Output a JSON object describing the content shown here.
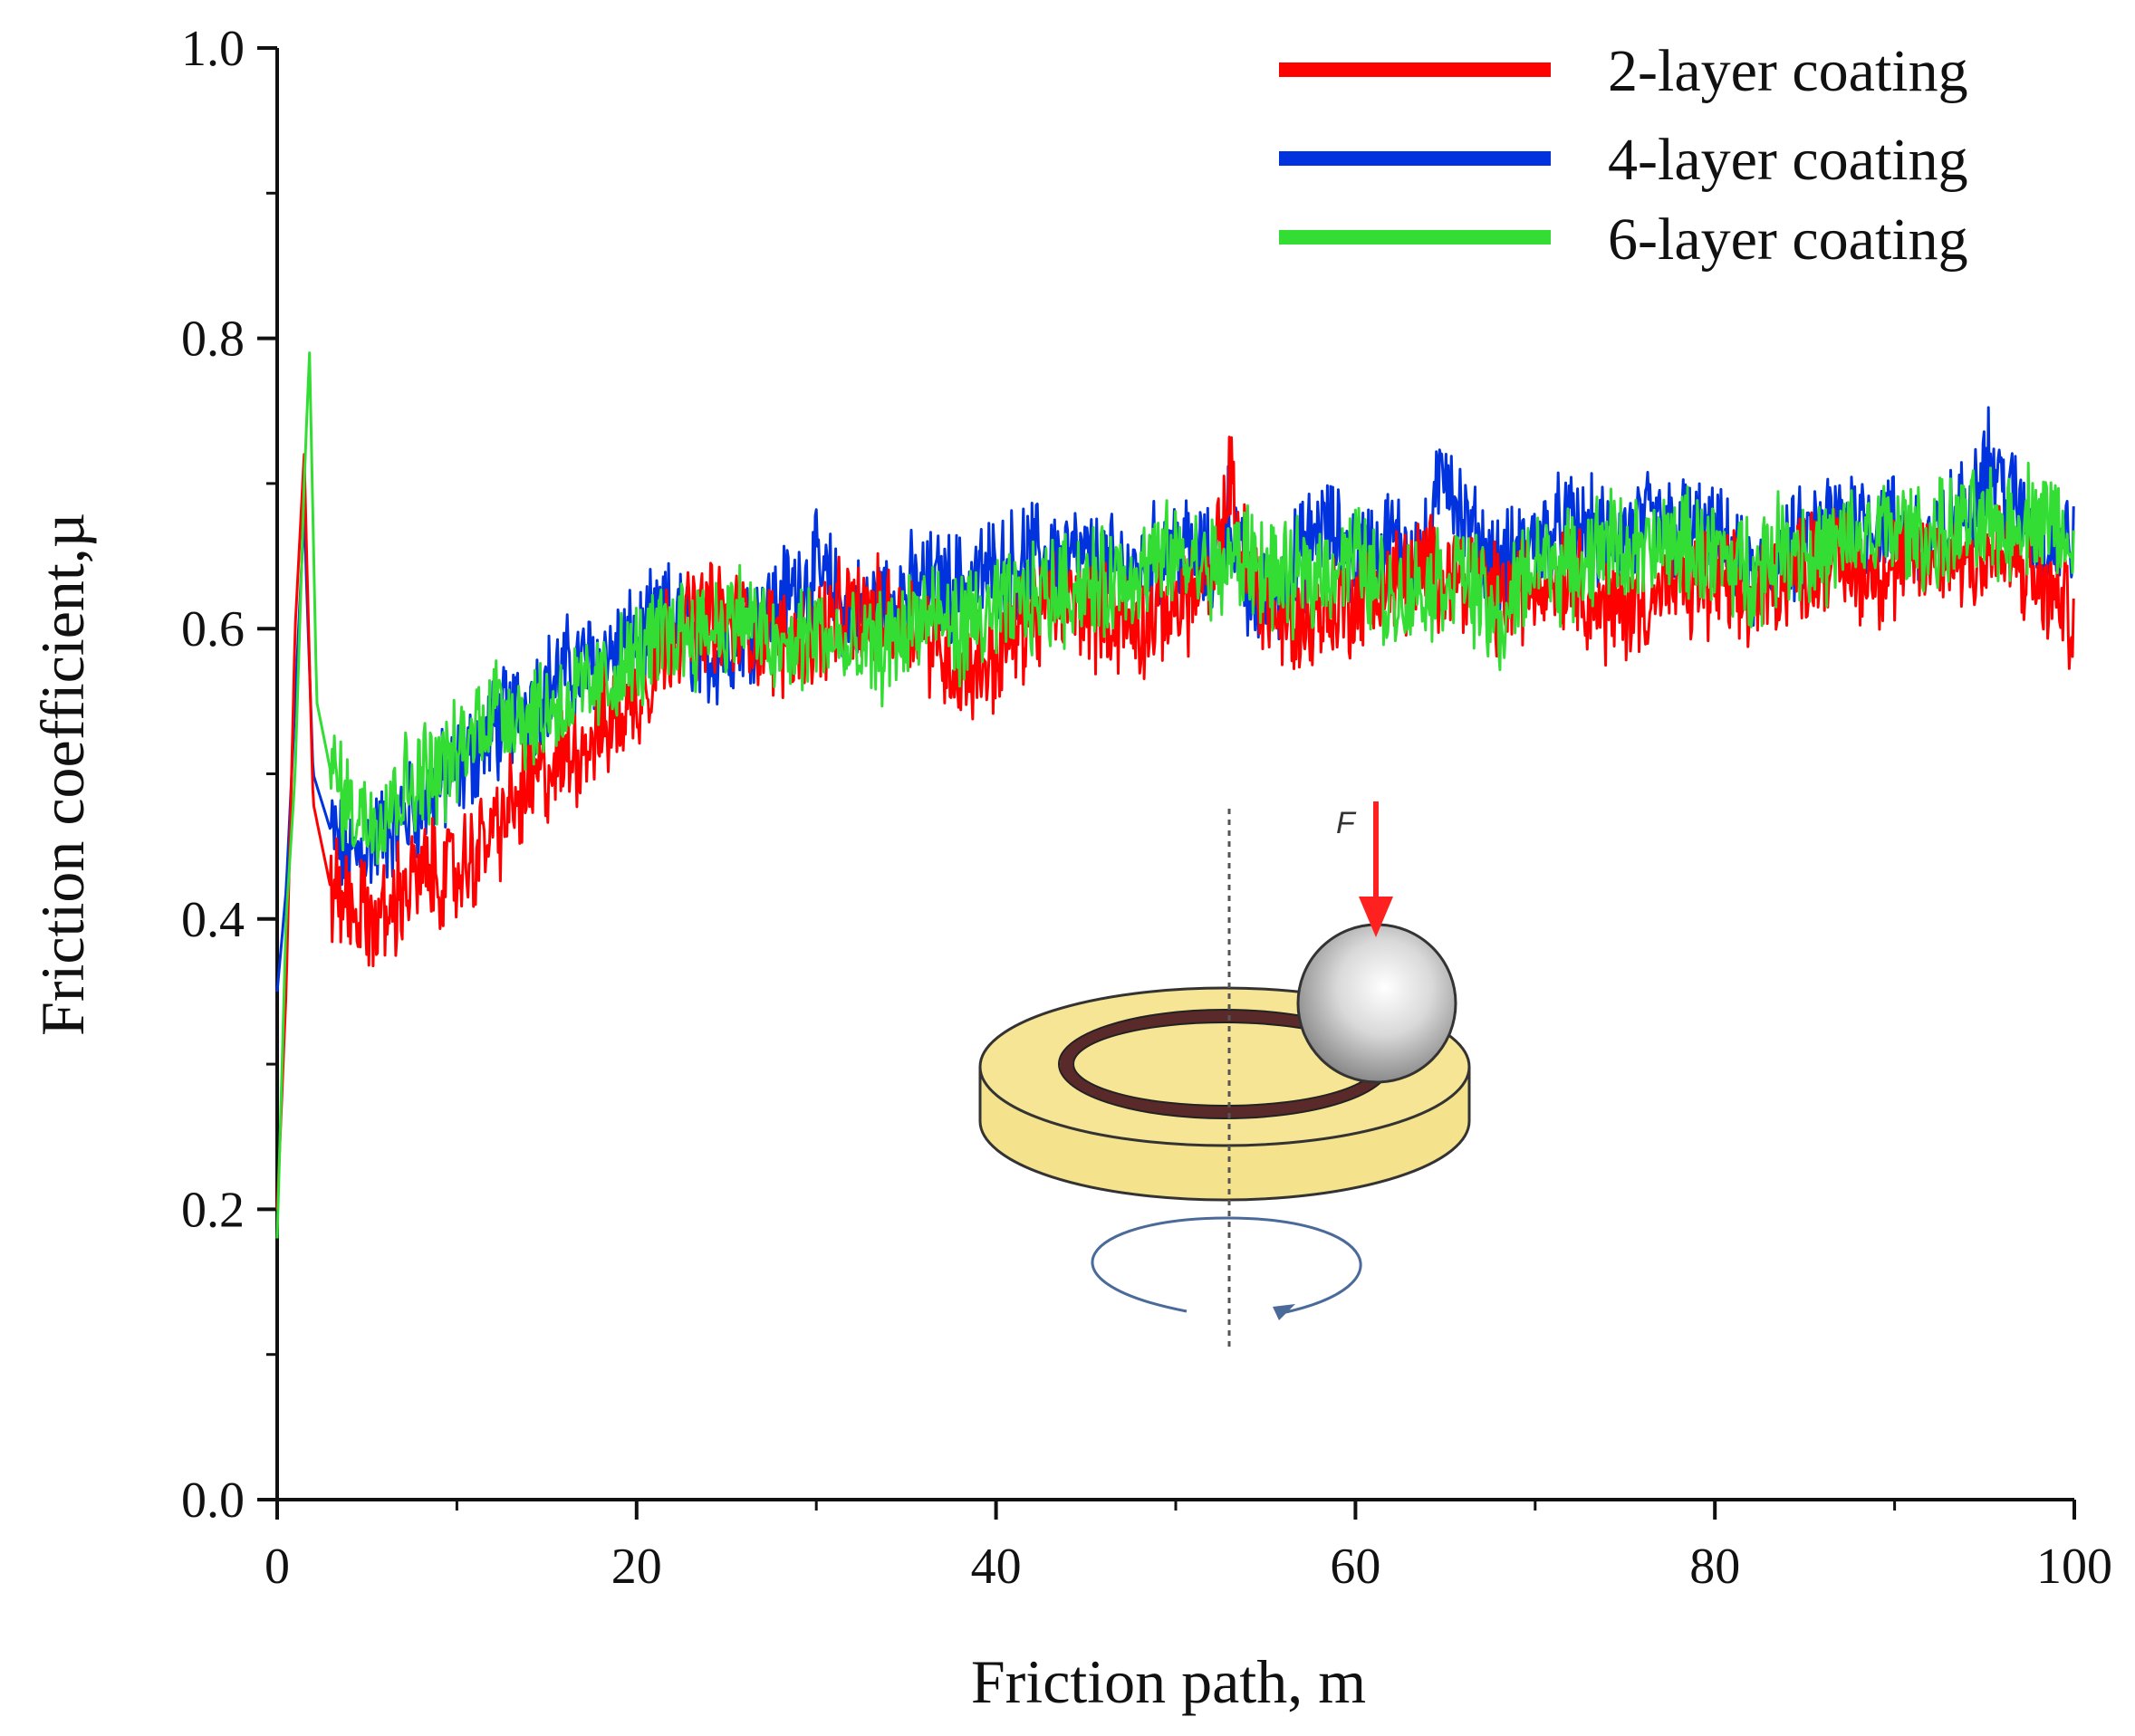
{
  "chart_data": {
    "type": "line",
    "title": "",
    "xlabel": "Friction path, m",
    "ylabel": "Friction coefficient,µ",
    "xlim": [
      0,
      100
    ],
    "ylim": [
      0.0,
      1.0
    ],
    "xticks": [
      "0",
      "20",
      "40",
      "60",
      "80",
      "100"
    ],
    "yticks": [
      "0.0",
      "0.2",
      "0.4",
      "0.6",
      "0.8",
      "1.0"
    ],
    "legend_position": "top-right",
    "grid": false,
    "series": [
      {
        "name": "2-layer coating",
        "color": "#ff0000",
        "x": [
          0,
          0.5,
          1.0,
          1.5,
          2.0,
          3.0,
          4.0,
          5.0,
          6.0,
          7.0,
          8.0,
          10.0,
          12.0,
          14.0,
          16.0,
          18.0,
          20.0,
          22.0,
          24.0,
          26.0,
          28.0,
          30.0,
          32.0,
          34.0,
          36.0,
          38.0,
          40.0,
          42.0,
          44.0,
          46.0,
          48.0,
          50.0,
          52.0,
          53.0,
          54.0,
          56.0,
          58.0,
          60.0,
          62.0,
          64.0,
          66.0,
          68.0,
          70.0,
          72.0,
          74.0,
          76.0,
          78.0,
          80.0,
          82.0,
          84.0,
          86.0,
          88.0,
          90.0,
          92.0,
          94.0,
          96.0,
          98.0,
          100.0
        ],
        "values": [
          0.2,
          0.35,
          0.6,
          0.72,
          0.48,
          0.42,
          0.41,
          0.4,
          0.4,
          0.42,
          0.43,
          0.43,
          0.46,
          0.49,
          0.51,
          0.53,
          0.55,
          0.6,
          0.61,
          0.6,
          0.59,
          0.6,
          0.61,
          0.61,
          0.6,
          0.57,
          0.58,
          0.61,
          0.62,
          0.61,
          0.6,
          0.62,
          0.63,
          0.7,
          0.64,
          0.6,
          0.61,
          0.62,
          0.63,
          0.64,
          0.64,
          0.62,
          0.63,
          0.64,
          0.61,
          0.62,
          0.63,
          0.63,
          0.62,
          0.64,
          0.65,
          0.64,
          0.64,
          0.65,
          0.65,
          0.65,
          0.63,
          0.61
        ]
      },
      {
        "name": "4-layer coating",
        "color": "#0033dd",
        "x": [
          0,
          0.5,
          1.0,
          1.5,
          2.0,
          3.0,
          4.0,
          5.0,
          6.0,
          7.0,
          8.0,
          10.0,
          12.0,
          14.0,
          16.0,
          18.0,
          20.0,
          22.0,
          24.0,
          26.0,
          28.0,
          30.0,
          32.0,
          34.0,
          36.0,
          38.0,
          40.0,
          42.0,
          44.0,
          46.0,
          48.0,
          50.0,
          52.0,
          53.0,
          54.0,
          56.0,
          58.0,
          60.0,
          62.0,
          64.0,
          65.0,
          66.0,
          68.0,
          70.0,
          72.0,
          74.0,
          76.0,
          78.0,
          80.0,
          82.0,
          84.0,
          86.0,
          88.0,
          90.0,
          92.0,
          94.0,
          95.0,
          96.0,
          98.0,
          100.0
        ],
        "values": [
          0.35,
          0.42,
          0.55,
          0.68,
          0.5,
          0.46,
          0.44,
          0.45,
          0.46,
          0.47,
          0.48,
          0.5,
          0.53,
          0.55,
          0.57,
          0.58,
          0.59,
          0.61,
          0.58,
          0.6,
          0.62,
          0.64,
          0.61,
          0.62,
          0.63,
          0.63,
          0.64,
          0.65,
          0.65,
          0.64,
          0.64,
          0.66,
          0.64,
          0.68,
          0.62,
          0.63,
          0.67,
          0.65,
          0.66,
          0.65,
          0.72,
          0.67,
          0.64,
          0.66,
          0.67,
          0.66,
          0.67,
          0.67,
          0.66,
          0.63,
          0.65,
          0.67,
          0.68,
          0.67,
          0.66,
          0.68,
          0.72,
          0.7,
          0.66,
          0.66
        ]
      },
      {
        "name": "6-layer coating",
        "color": "#33dd33",
        "x": [
          0,
          0.5,
          1.0,
          1.5,
          1.8,
          2.2,
          3.0,
          4.0,
          5.0,
          6.0,
          7.0,
          8.0,
          10.0,
          12.0,
          14.0,
          16.0,
          18.0,
          20.0,
          22.0,
          24.0,
          26.0,
          28.0,
          30.0,
          32.0,
          34.0,
          36.0,
          38.0,
          40.0,
          42.0,
          44.0,
          46.0,
          48.0,
          50.0,
          52.0,
          54.0,
          56.0,
          58.0,
          60.0,
          62.0,
          64.0,
          66.0,
          68.0,
          70.0,
          72.0,
          74.0,
          76.0,
          78.0,
          80.0,
          82.0,
          84.0,
          86.0,
          88.0,
          90.0,
          92.0,
          94.0,
          96.0,
          98.0,
          100.0
        ],
        "values": [
          0.18,
          0.4,
          0.5,
          0.7,
          0.79,
          0.55,
          0.5,
          0.48,
          0.47,
          0.48,
          0.49,
          0.5,
          0.51,
          0.55,
          0.54,
          0.55,
          0.56,
          0.58,
          0.6,
          0.6,
          0.61,
          0.58,
          0.6,
          0.58,
          0.59,
          0.61,
          0.6,
          0.61,
          0.62,
          0.63,
          0.63,
          0.64,
          0.65,
          0.64,
          0.65,
          0.63,
          0.64,
          0.65,
          0.62,
          0.63,
          0.64,
          0.6,
          0.65,
          0.64,
          0.66,
          0.65,
          0.66,
          0.65,
          0.64,
          0.66,
          0.65,
          0.66,
          0.67,
          0.66,
          0.67,
          0.67,
          0.68,
          0.66
        ]
      }
    ]
  },
  "inset": {
    "force_label": "F",
    "description_icon": "ball-on-disc-tribometer"
  },
  "colors": {
    "axis": "#111111",
    "disk_fill": "#f5e28c",
    "wear_track": "#5a2a2a",
    "force_arrow": "#ff2020",
    "rotation_arrow": "#4a6a9a"
  }
}
